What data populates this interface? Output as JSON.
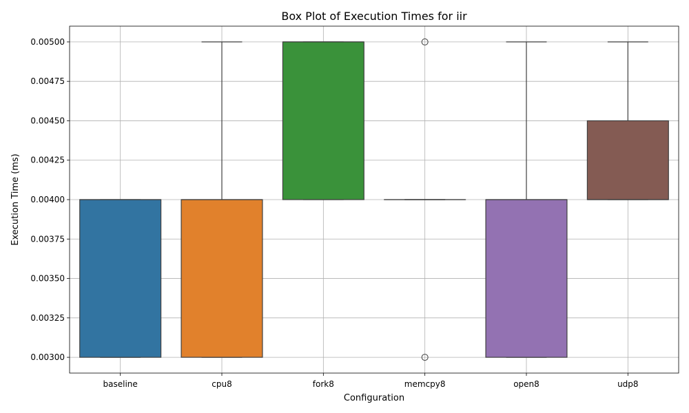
{
  "chart_data": {
    "type": "box",
    "title": "Box Plot of Execution Times for iir",
    "xlabel": "Configuration",
    "ylabel": "Execution Time (ms)",
    "ylim": [
      0.0029,
      0.0051
    ],
    "yticks": [
      0.003,
      0.00325,
      0.0035,
      0.00375,
      0.004,
      0.00425,
      0.0045,
      0.00475,
      0.005
    ],
    "ytick_labels": [
      "0.00300",
      "0.00325",
      "0.00350",
      "0.00375",
      "0.00400",
      "0.00425",
      "0.00450",
      "0.00475",
      "0.00500"
    ],
    "grid": true,
    "categories": [
      "baseline",
      "cpu8",
      "fork8",
      "memcpy8",
      "open8",
      "udp8"
    ],
    "series": [
      {
        "category": "baseline",
        "color": "#3274a1",
        "q1": 0.003,
        "median": 0.004,
        "q3": 0.004,
        "whisker_low": 0.003,
        "whisker_high": 0.004,
        "outliers": []
      },
      {
        "category": "cpu8",
        "color": "#e1812c",
        "q1": 0.003,
        "median": 0.004,
        "q3": 0.004,
        "whisker_low": 0.003,
        "whisker_high": 0.005,
        "outliers": []
      },
      {
        "category": "fork8",
        "color": "#3a923a",
        "q1": 0.004,
        "median": 0.005,
        "q3": 0.005,
        "whisker_low": 0.004,
        "whisker_high": 0.005,
        "outliers": []
      },
      {
        "category": "memcpy8",
        "color": "#c03d3e",
        "q1": 0.004,
        "median": 0.004,
        "q3": 0.004,
        "whisker_low": 0.004,
        "whisker_high": 0.004,
        "outliers": [
          0.005,
          0.003
        ]
      },
      {
        "category": "open8",
        "color": "#9372b2",
        "q1": 0.003,
        "median": 0.004,
        "q3": 0.004,
        "whisker_low": 0.003,
        "whisker_high": 0.005,
        "outliers": []
      },
      {
        "category": "udp8",
        "color": "#845b53",
        "q1": 0.004,
        "median": 0.004,
        "q3": 0.0045,
        "whisker_low": 0.004,
        "whisker_high": 0.005,
        "outliers": []
      }
    ]
  }
}
